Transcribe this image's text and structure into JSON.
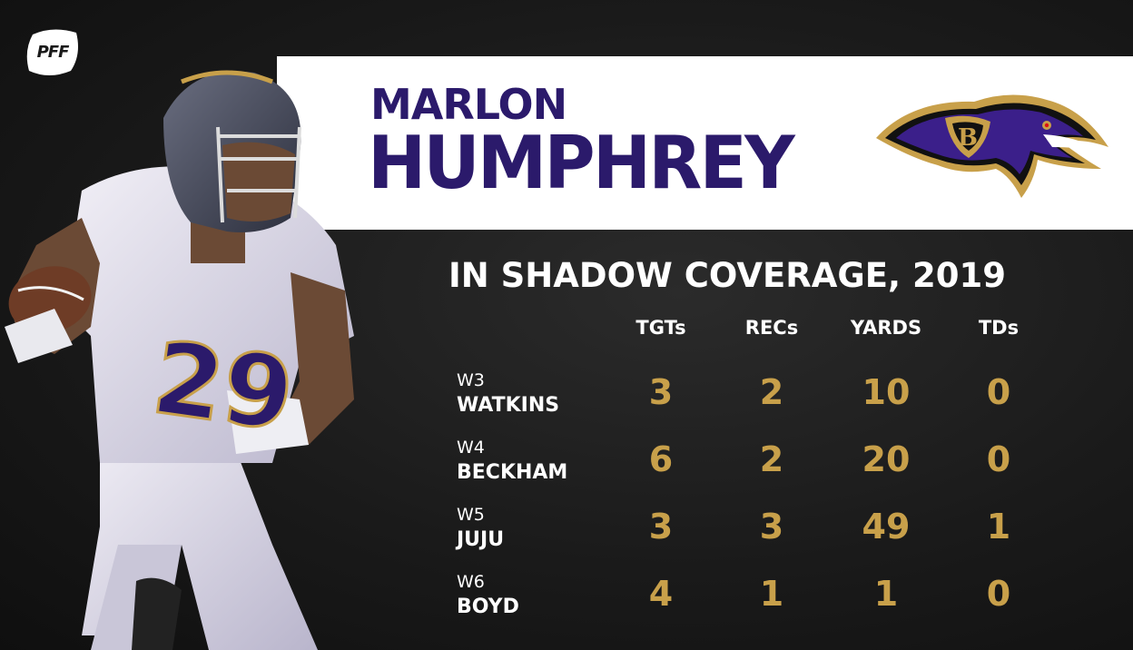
{
  "brand": {
    "logo_text": "PFF"
  },
  "player": {
    "first_name": "MARLON",
    "last_name": "HUMPHREY"
  },
  "team": {
    "logo": "baltimore-ravens-logo",
    "primary_color": "#2b1a6b",
    "gold_color": "#c8a04a"
  },
  "table": {
    "title": "IN SHADOW COVERAGE, 2019",
    "columns": [
      "TGTs",
      "RECs",
      "YARDS",
      "TDs"
    ],
    "rows": [
      {
        "week": "W3",
        "opponent": "WATKINS",
        "values": [
          "3",
          "2",
          "10",
          "0"
        ]
      },
      {
        "week": "W4",
        "opponent": "BECKHAM",
        "values": [
          "6",
          "2",
          "20",
          "0"
        ]
      },
      {
        "week": "W5",
        "opponent": "JUJU",
        "values": [
          "3",
          "3",
          "49",
          "1"
        ]
      },
      {
        "week": "W6",
        "opponent": "BOYD",
        "values": [
          "4",
          "1",
          "1",
          "0"
        ]
      }
    ]
  }
}
